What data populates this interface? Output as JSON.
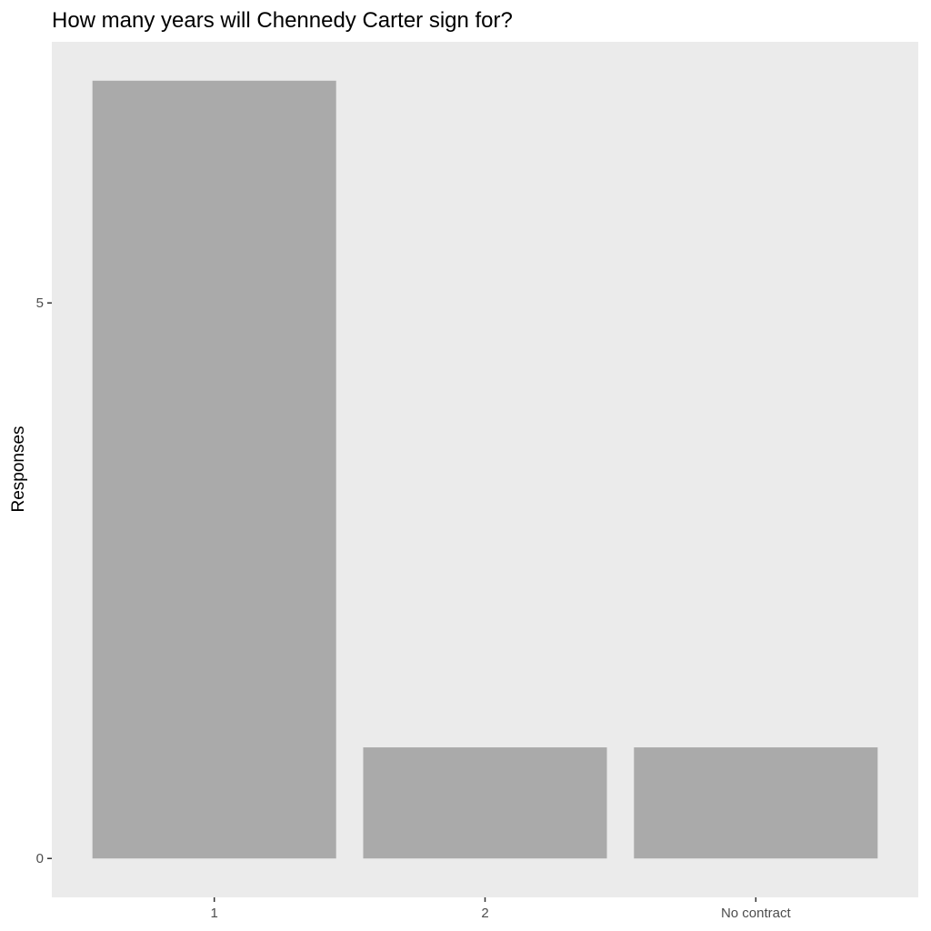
{
  "chart_data": {
    "type": "bar",
    "title": "How many years will Chennedy Carter sign for?",
    "xlabel": "",
    "ylabel": "Responses",
    "categories": [
      "1",
      "2",
      "No contract"
    ],
    "values": [
      7,
      1,
      1
    ],
    "yticks": [
      0,
      5
    ],
    "ylim": [
      -0.35,
      7.35
    ],
    "grid": false,
    "legend": "none",
    "colors": {
      "panel": "#ebebeb",
      "bar": "#aaaaaa",
      "tick": "#333333",
      "tick_text": "#4d4d4d"
    }
  }
}
